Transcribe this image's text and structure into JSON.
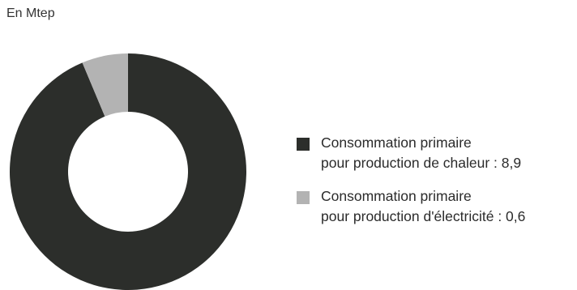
{
  "chart_data": {
    "type": "pie",
    "variant": "donut",
    "unit_label": "En Mtep",
    "legend_placement": "right",
    "slices": [
      {
        "label_line1": "Consommation primaire",
        "label_line2": "pour production de chaleur : 8,9",
        "value": 8.9,
        "color": "#2c2e2b"
      },
      {
        "label_line1": "Consommation primaire",
        "label_line2": "pour production d'électricité : 0,6",
        "value": 0.6,
        "color": "#b3b3b3"
      }
    ]
  }
}
